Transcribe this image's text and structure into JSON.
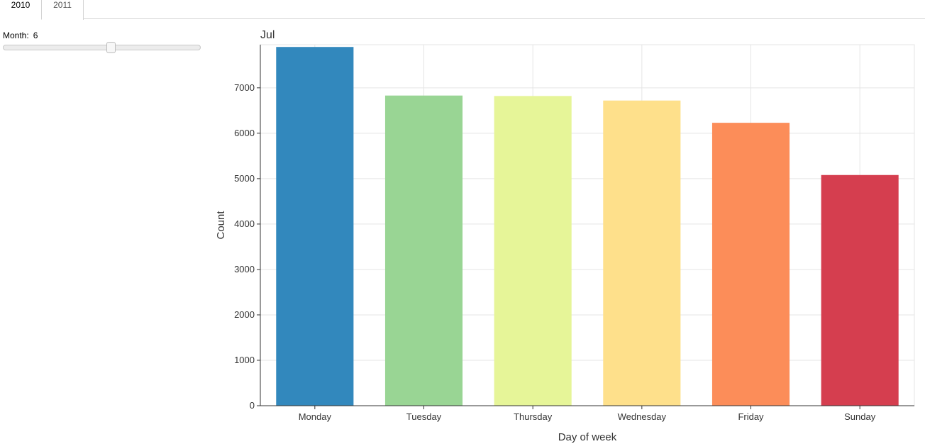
{
  "tabs": [
    {
      "label": "2010",
      "active": true
    },
    {
      "label": "2011",
      "active": false
    }
  ],
  "slider": {
    "label": "Month:",
    "value": "6",
    "min": 0,
    "max": 11,
    "position_fraction": 0.55
  },
  "colors": {
    "bars": [
      "#3288bd",
      "#99d594",
      "#e6f598",
      "#fee08b",
      "#fc8d59",
      "#d53e4f"
    ],
    "grid": "#e5e5e5",
    "axis": "#333333"
  },
  "chart_data": {
    "type": "bar",
    "title": "Jul",
    "xlabel": "Day of week",
    "ylabel": "Count",
    "categories": [
      "Monday",
      "Tuesday",
      "Thursday",
      "Wednesday",
      "Friday",
      "Sunday"
    ],
    "values": [
      7900,
      6830,
      6820,
      6720,
      6230,
      5080
    ],
    "ylim": [
      0,
      7950
    ],
    "yticks": [
      0,
      1000,
      2000,
      3000,
      4000,
      5000,
      6000,
      7000
    ],
    "grid": true
  }
}
